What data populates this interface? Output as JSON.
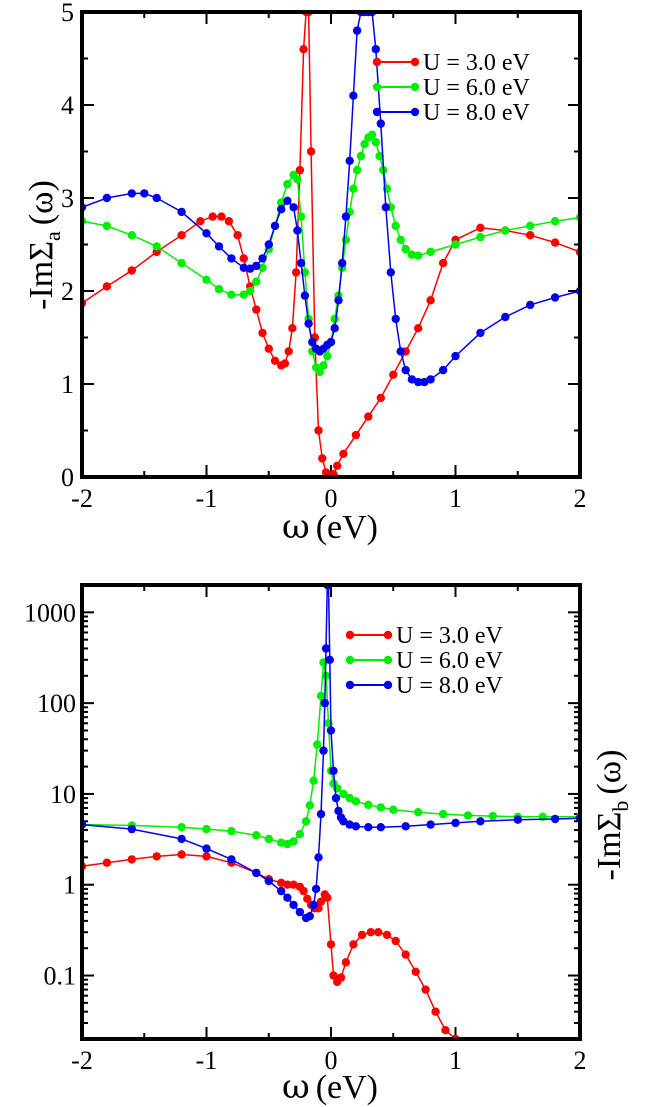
{
  "chart_data": [
    {
      "type": "line",
      "scale": "linear",
      "xlabel": {
        "symbol": "ω",
        "unit": "(eV)"
      },
      "ylabel": {
        "prefix": "-ImΣ",
        "sub": "a",
        "suffix": "(ω)"
      },
      "xlim": [
        -2,
        2
      ],
      "ylim": [
        0,
        5
      ],
      "xticks": [
        -2,
        -1,
        0,
        1,
        2
      ],
      "yticks": [
        0,
        1,
        2,
        3,
        4,
        5
      ],
      "legend_position": "top-right",
      "series": [
        {
          "name": "U = 3.0 eV",
          "color": "#ff0000",
          "x": [
            -2.0,
            -1.8,
            -1.6,
            -1.4,
            -1.2,
            -1.05,
            -0.95,
            -0.88,
            -0.82,
            -0.75,
            -0.7,
            -0.65,
            -0.6,
            -0.55,
            -0.5,
            -0.45,
            -0.4,
            -0.37,
            -0.34,
            -0.31,
            -0.28,
            -0.25,
            -0.22,
            -0.2,
            -0.18,
            -0.16,
            -0.13,
            -0.1,
            -0.07,
            -0.04,
            -0.01,
            0.02,
            0.05,
            0.1,
            0.2,
            0.3,
            0.4,
            0.5,
            0.6,
            0.7,
            0.8,
            0.9,
            1.0,
            1.2,
            1.4,
            1.6,
            1.8,
            2.0
          ],
          "y": [
            1.87,
            2.05,
            2.22,
            2.42,
            2.6,
            2.75,
            2.8,
            2.8,
            2.75,
            2.6,
            2.35,
            2.05,
            1.8,
            1.55,
            1.38,
            1.25,
            1.2,
            1.22,
            1.35,
            1.6,
            2.2,
            3.3,
            4.6,
            5.0,
            5.0,
            3.5,
            1.5,
            0.5,
            0.2,
            0.05,
            0.0,
            0.03,
            0.12,
            0.25,
            0.45,
            0.65,
            0.85,
            1.1,
            1.35,
            1.6,
            1.9,
            2.3,
            2.55,
            2.68,
            2.65,
            2.6,
            2.52,
            2.42
          ]
        },
        {
          "name": "U = 6.0 eV",
          "color": "#00ee00",
          "x": [
            -2.0,
            -1.8,
            -1.6,
            -1.4,
            -1.2,
            -1.0,
            -0.9,
            -0.8,
            -0.7,
            -0.65,
            -0.6,
            -0.55,
            -0.5,
            -0.45,
            -0.4,
            -0.35,
            -0.3,
            -0.27,
            -0.24,
            -0.21,
            -0.18,
            -0.15,
            -0.12,
            -0.09,
            -0.06,
            -0.03,
            0.0,
            0.03,
            0.06,
            0.09,
            0.12,
            0.15,
            0.18,
            0.21,
            0.24,
            0.27,
            0.3,
            0.33,
            0.36,
            0.39,
            0.42,
            0.45,
            0.48,
            0.52,
            0.56,
            0.6,
            0.65,
            0.7,
            0.8,
            1.0,
            1.2,
            1.4,
            1.6,
            1.8,
            2.0
          ],
          "y": [
            2.75,
            2.7,
            2.6,
            2.48,
            2.3,
            2.12,
            2.02,
            1.96,
            1.96,
            2.0,
            2.1,
            2.25,
            2.45,
            2.7,
            2.95,
            3.15,
            3.25,
            3.2,
            2.8,
            2.2,
            1.7,
            1.35,
            1.18,
            1.13,
            1.2,
            1.3,
            1.45,
            1.7,
            1.95,
            2.25,
            2.55,
            2.85,
            3.1,
            3.3,
            3.45,
            3.58,
            3.65,
            3.68,
            3.6,
            3.45,
            3.3,
            3.1,
            2.9,
            2.7,
            2.55,
            2.45,
            2.39,
            2.38,
            2.42,
            2.5,
            2.58,
            2.65,
            2.7,
            2.75,
            2.79
          ]
        },
        {
          "name": "U = 8.0 eV",
          "color": "#0000ee",
          "x": [
            -2.0,
            -1.8,
            -1.6,
            -1.5,
            -1.4,
            -1.2,
            -1.0,
            -0.9,
            -0.8,
            -0.7,
            -0.65,
            -0.6,
            -0.55,
            -0.5,
            -0.45,
            -0.4,
            -0.35,
            -0.3,
            -0.27,
            -0.24,
            -0.21,
            -0.18,
            -0.15,
            -0.12,
            -0.09,
            -0.06,
            -0.03,
            0.0,
            0.03,
            0.06,
            0.09,
            0.12,
            0.15,
            0.18,
            0.21,
            0.24,
            0.27,
            0.3,
            0.33,
            0.36,
            0.4,
            0.44,
            0.48,
            0.52,
            0.56,
            0.6,
            0.65,
            0.7,
            0.75,
            0.8,
            0.9,
            1.0,
            1.2,
            1.4,
            1.6,
            1.8,
            2.0
          ],
          "y": [
            2.9,
            3.0,
            3.05,
            3.05,
            3.0,
            2.85,
            2.62,
            2.48,
            2.35,
            2.25,
            2.24,
            2.27,
            2.35,
            2.5,
            2.7,
            2.88,
            2.97,
            2.9,
            2.65,
            2.3,
            1.95,
            1.65,
            1.45,
            1.38,
            1.35,
            1.38,
            1.42,
            1.45,
            1.6,
            1.9,
            2.3,
            2.8,
            3.4,
            4.1,
            4.8,
            5.0,
            5.0,
            5.0,
            5.0,
            4.6,
            3.8,
            2.9,
            2.2,
            1.7,
            1.35,
            1.15,
            1.05,
            1.02,
            1.02,
            1.05,
            1.15,
            1.3,
            1.55,
            1.72,
            1.85,
            1.93,
            2.0
          ]
        }
      ]
    },
    {
      "type": "line",
      "scale": "log",
      "xlabel": {
        "symbol": "ω",
        "unit": "(eV)"
      },
      "ylabel": {
        "prefix": "-ImΣ",
        "sub": "b",
        "suffix": "(ω)"
      },
      "xlim": [
        -2,
        2
      ],
      "ylim": [
        0.02,
        2000
      ],
      "xticks": [
        -2,
        -1,
        0,
        1,
        2
      ],
      "yticks": [
        0.1,
        1,
        10,
        100,
        1000
      ],
      "ytick_labels": [
        "0.1",
        "1",
        "10",
        "100",
        "1000"
      ],
      "legend_position": "top-right",
      "series": [
        {
          "name": "U = 3.0 eV",
          "color": "#ff0000",
          "x": [
            -2.0,
            -1.8,
            -1.6,
            -1.4,
            -1.2,
            -1.0,
            -0.8,
            -0.6,
            -0.5,
            -0.4,
            -0.35,
            -0.3,
            -0.25,
            -0.22,
            -0.19,
            -0.16,
            -0.13,
            -0.1,
            -0.08,
            -0.05,
            -0.03,
            0.0,
            0.02,
            0.05,
            0.08,
            0.12,
            0.18,
            0.25,
            0.32,
            0.38,
            0.45,
            0.52,
            0.6,
            0.68,
            0.76,
            0.84,
            0.92,
            1.0
          ],
          "y": [
            1.6,
            1.75,
            1.9,
            2.05,
            2.15,
            2.05,
            1.75,
            1.35,
            1.15,
            1.05,
            1.0,
            1.0,
            0.95,
            0.85,
            0.7,
            0.6,
            0.55,
            0.55,
            0.65,
            0.78,
            0.72,
            0.22,
            0.1,
            0.085,
            0.095,
            0.14,
            0.22,
            0.28,
            0.3,
            0.3,
            0.28,
            0.24,
            0.17,
            0.11,
            0.07,
            0.04,
            0.025,
            0.02
          ]
        },
        {
          "name": "U = 6.0 eV",
          "color": "#00ee00",
          "x": [
            -2.0,
            -1.6,
            -1.2,
            -1.0,
            -0.8,
            -0.6,
            -0.5,
            -0.4,
            -0.35,
            -0.3,
            -0.25,
            -0.2,
            -0.17,
            -0.14,
            -0.11,
            -0.08,
            -0.06,
            -0.04,
            -0.02,
            0.0,
            0.02,
            0.05,
            0.1,
            0.15,
            0.2,
            0.3,
            0.4,
            0.5,
            0.7,
            0.9,
            1.1,
            1.3,
            1.5,
            1.7,
            2.0
          ],
          "y": [
            4.6,
            4.5,
            4.3,
            4.1,
            3.9,
            3.5,
            3.2,
            2.9,
            2.8,
            3.0,
            3.6,
            5.0,
            7.5,
            14.0,
            35.0,
            120.0,
            280.0,
            200.0,
            60.0,
            18.0,
            13.0,
            11.5,
            10.0,
            9.0,
            8.3,
            7.6,
            7.1,
            6.7,
            6.3,
            6.0,
            5.8,
            5.7,
            5.6,
            5.6,
            5.6
          ]
        },
        {
          "name": "U = 8.0 eV",
          "color": "#0000ee",
          "x": [
            -2.0,
            -1.6,
            -1.2,
            -1.0,
            -0.8,
            -0.6,
            -0.5,
            -0.4,
            -0.35,
            -0.3,
            -0.25,
            -0.2,
            -0.17,
            -0.14,
            -0.12,
            -0.1,
            -0.08,
            -0.06,
            -0.05,
            -0.04,
            -0.03,
            -0.02,
            -0.01,
            0.0,
            0.02,
            0.04,
            0.06,
            0.08,
            0.1,
            0.15,
            0.2,
            0.3,
            0.4,
            0.6,
            0.8,
            1.0,
            1.2,
            1.5,
            1.8,
            2.0
          ],
          "y": [
            4.6,
            4.1,
            3.2,
            2.5,
            1.9,
            1.35,
            1.1,
            0.85,
            0.72,
            0.6,
            0.5,
            0.43,
            0.45,
            0.6,
            0.9,
            2.0,
            6.0,
            30.0,
            100.0,
            400.0,
            2000.0,
            2000.0,
            300.0,
            50.0,
            18.0,
            9.0,
            6.5,
            5.5,
            5.0,
            4.6,
            4.4,
            4.3,
            4.3,
            4.4,
            4.6,
            4.8,
            5.0,
            5.2,
            5.3,
            5.4
          ]
        }
      ]
    }
  ]
}
